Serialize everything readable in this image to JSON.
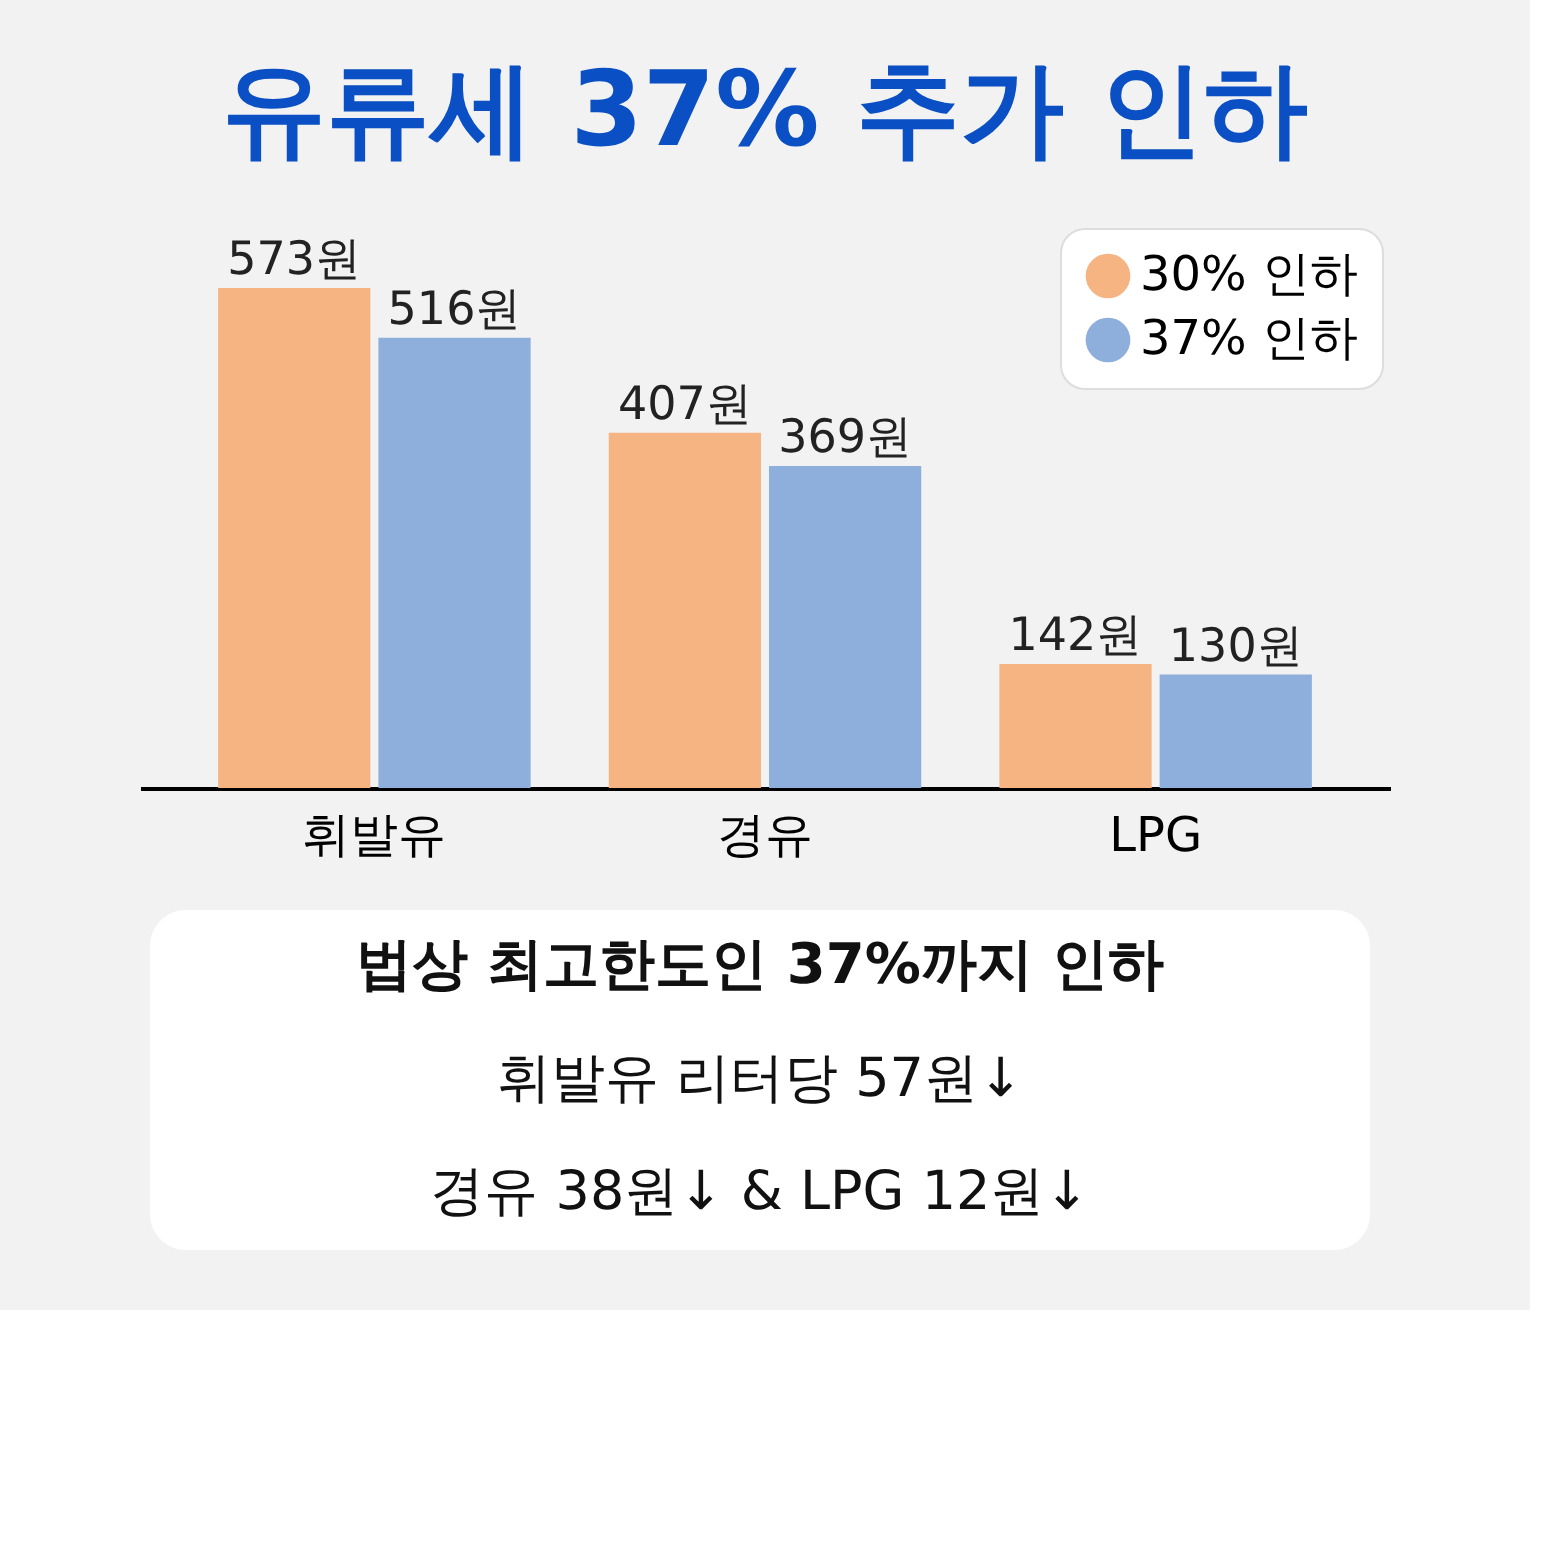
{
  "chart_data": {
    "type": "bar",
    "title": "유류세 37% 추가 인하",
    "categories": [
      "휘발유",
      "경유",
      "LPG"
    ],
    "series": [
      {
        "name": "30% 인하",
        "color": "#f5b482",
        "values": [
          573,
          407,
          142
        ],
        "value_labels": [
          "573원",
          "407원",
          "142원"
        ]
      },
      {
        "name": "37% 인하",
        "color": "#8eaedc",
        "values": [
          516,
          369,
          130
        ],
        "value_labels": [
          "516원",
          "369원",
          "130원"
        ]
      }
    ],
    "legend": "top right",
    "grid": false,
    "annotations": [
      "법상 최고한도인 37%까지 인하",
      "휘발유 리터당 57원↓",
      "경유 38원↓ & LPG 12원↓"
    ]
  }
}
